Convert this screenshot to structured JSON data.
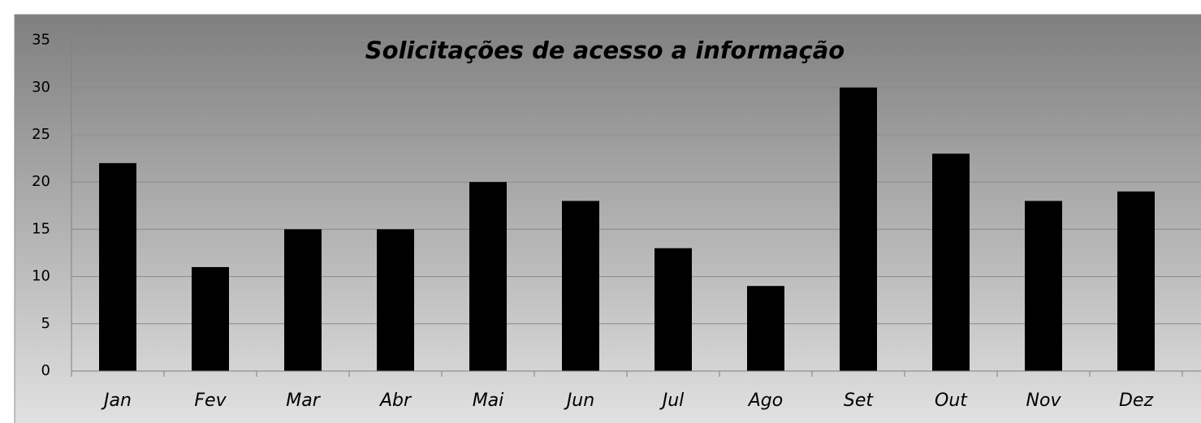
{
  "chart_data": {
    "type": "bar",
    "title": "Solicitações de acesso a informação",
    "categories": [
      "Jan",
      "Fev",
      "Mar",
      "Abr",
      "Mai",
      "Jun",
      "Jul",
      "Ago",
      "Set",
      "Out",
      "Nov",
      "Dez"
    ],
    "values": [
      22,
      11,
      15,
      15,
      20,
      18,
      13,
      9,
      30,
      23,
      18,
      19
    ],
    "color": "#000000",
    "ylim": [
      0,
      35
    ],
    "yticks": [
      0,
      5,
      10,
      15,
      20,
      25,
      30,
      35
    ],
    "grid": true
  }
}
